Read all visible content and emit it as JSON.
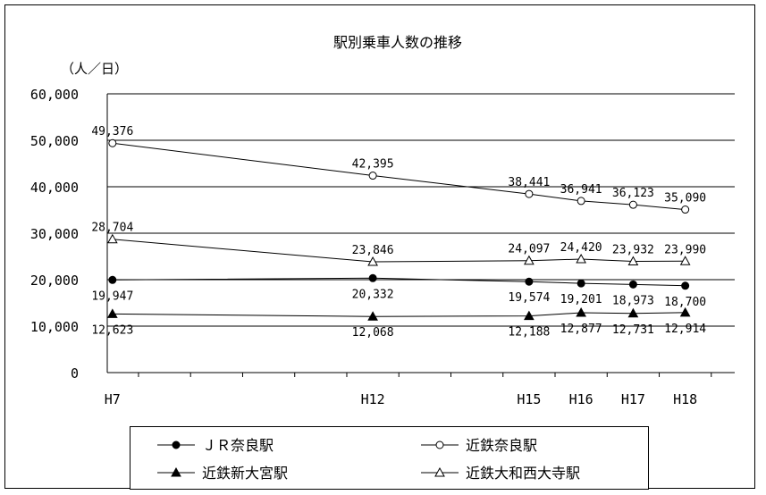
{
  "chart_data": {
    "type": "line",
    "title": "駅別乗車人数の推移",
    "ylabel": "（人／日）",
    "xlabel": "",
    "categories": [
      "H7",
      "H12",
      "H15",
      "H16",
      "H17",
      "H18"
    ],
    "x": [
      7,
      12,
      15,
      16,
      17,
      18
    ],
    "ylim": [
      0,
      60000
    ],
    "yticks": [
      0,
      10000,
      20000,
      30000,
      40000,
      50000,
      60000
    ],
    "ytick_labels": [
      "0",
      "10,000",
      "20,000",
      "30,000",
      "40,000",
      "50,000",
      "60,000"
    ],
    "grid": true,
    "legend_position": "bottom",
    "series": [
      {
        "name": "ＪＲ奈良駅",
        "marker": "filled-circle",
        "values": [
          19947,
          20332,
          19574,
          19201,
          18973,
          18700
        ],
        "labels": [
          "19,947",
          "20,332",
          "19,574",
          "19,201",
          "18,973",
          "18,700"
        ]
      },
      {
        "name": "近鉄奈良駅",
        "marker": "open-circle",
        "values": [
          49376,
          42395,
          38441,
          36941,
          36123,
          35090
        ],
        "labels": [
          "49,376",
          "42,395",
          "38,441",
          "36,941",
          "36,123",
          "35,090"
        ]
      },
      {
        "name": "近鉄新大宮駅",
        "marker": "filled-triangle",
        "values": [
          12623,
          12068,
          12188,
          12877,
          12731,
          12914
        ],
        "labels": [
          "12,623",
          "12,068",
          "12,188",
          "12,877",
          "12,731",
          "12,914"
        ]
      },
      {
        "name": "近鉄大和西大寺駅",
        "marker": "open-triangle",
        "values": [
          28704,
          23846,
          24097,
          24420,
          23932,
          23990
        ],
        "labels": [
          "28,704",
          "23,846",
          "24,097",
          "24,420",
          "23,932",
          "23,990"
        ]
      }
    ]
  }
}
